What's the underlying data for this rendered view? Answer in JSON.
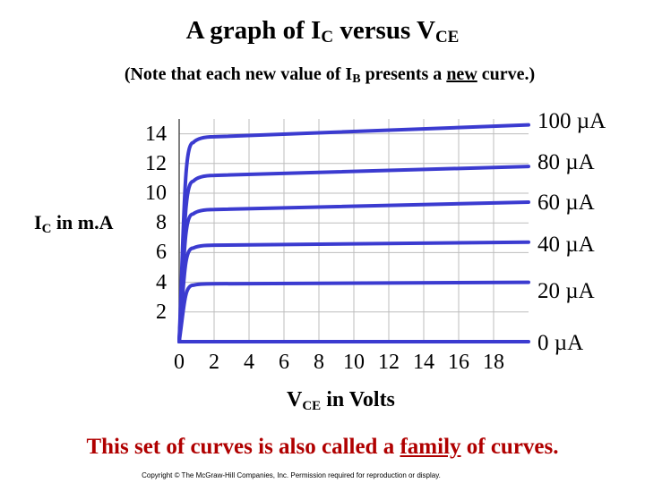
{
  "title": {
    "prefix": "A graph of I",
    "sub1": "C",
    "middle": " versus V",
    "sub2": "CE"
  },
  "note": {
    "part1": "(Note that each new value of I",
    "sub": "B",
    "part2": " presents a ",
    "underlined": "new",
    "part3": " curve.)"
  },
  "footer": {
    "part1": "This set of curves is also called a ",
    "underlined": "family",
    "part2": " of curves."
  },
  "copyright": "Copyright © The McGraw-Hill Companies, Inc. Permission required for reproduction or display.",
  "colors": {
    "curve": "#3b3bd0",
    "grid": "#bdbdbd",
    "footer": "#b00000"
  },
  "chart_data": {
    "type": "line",
    "xlabel": {
      "main": "V",
      "sub": "CE",
      "rest": " in Volts"
    },
    "ylabel": {
      "main": "I",
      "sub": "C",
      "rest": " in m.A"
    },
    "xlim": [
      0,
      20
    ],
    "ylim": [
      0,
      15
    ],
    "x_ticks": [
      "0",
      "2",
      "4",
      "6",
      "8",
      "10",
      "12",
      "14",
      "16",
      "18"
    ],
    "y_ticks": [
      "14",
      "12",
      "10",
      "8",
      "6",
      "4",
      "2"
    ],
    "grid": true,
    "series": [
      {
        "name": "100 µA",
        "values": [
          [
            0,
            0
          ],
          [
            0.3,
            9
          ],
          [
            0.8,
            13.4
          ],
          [
            2,
            13.8
          ],
          [
            20,
            14.6
          ]
        ]
      },
      {
        "name": "80 µA",
        "values": [
          [
            0,
            0
          ],
          [
            0.3,
            7
          ],
          [
            0.8,
            10.8
          ],
          [
            2,
            11.2
          ],
          [
            20,
            11.8
          ]
        ]
      },
      {
        "name": "60 µA",
        "values": [
          [
            0,
            0
          ],
          [
            0.3,
            6
          ],
          [
            0.8,
            8.6
          ],
          [
            2,
            8.9
          ],
          [
            20,
            9.4
          ]
        ]
      },
      {
        "name": "40 µA",
        "values": [
          [
            0,
            0
          ],
          [
            0.3,
            4.5
          ],
          [
            0.8,
            6.3
          ],
          [
            2,
            6.5
          ],
          [
            20,
            6.7
          ]
        ]
      },
      {
        "name": "20 µA",
        "values": [
          [
            0,
            0
          ],
          [
            0.3,
            2.5
          ],
          [
            0.8,
            3.8
          ],
          [
            2,
            3.9
          ],
          [
            20,
            4.0
          ]
        ]
      },
      {
        "name": "0 µA",
        "values": [
          [
            0,
            0
          ],
          [
            20,
            0
          ]
        ]
      }
    ]
  }
}
